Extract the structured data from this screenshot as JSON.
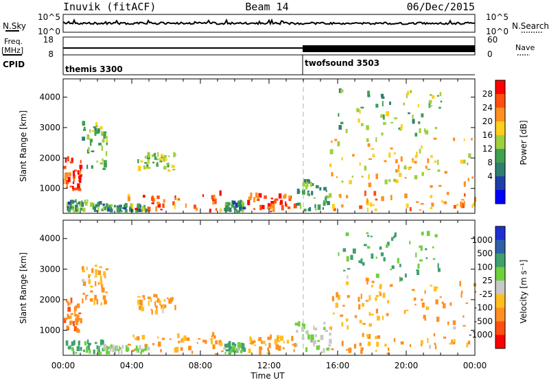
{
  "header": {
    "station": "Inuvik (fitACF)",
    "beam": "Beam 14",
    "date": "06/Dec/2015"
  },
  "strips": {
    "nsky_label": "N.Sky",
    "nsky_ticks": [
      "10^5",
      "10^0"
    ],
    "nsearch_label": "N.Search",
    "nsearch_ticks": [
      "10^5",
      "10^0"
    ],
    "freq_label_1": "Freq.",
    "freq_label_2": "[MHz]",
    "freq_ticks": [
      "18",
      "8"
    ],
    "nave_label": "Nave",
    "nave_ticks": [
      "60",
      "0"
    ],
    "cpid_label": "CPID",
    "cpid_segments": [
      {
        "name": "themis 3300",
        "start_hour": 0
      },
      {
        "name": "twofsound 3503",
        "start_hour": 14
      }
    ]
  },
  "panels": [
    {
      "ylabel": "Slant Range [km]",
      "yticks": [
        "4000",
        "3000",
        "2000",
        "1000"
      ],
      "colorbar_label": "Power [dB]",
      "colorbar_ticks": [
        "28",
        "24",
        "20",
        "16",
        "12",
        "8",
        "4"
      ]
    },
    {
      "ylabel": "Slant Range [km]",
      "yticks": [
        "4000",
        "3000",
        "2000",
        "1000"
      ],
      "colorbar_label": "Velocity [m s⁻¹]",
      "colorbar_ticks": [
        "1000",
        "500",
        "100",
        "25",
        "-25",
        "-100",
        "-500",
        "-1000"
      ]
    }
  ],
  "xaxis": {
    "label": "Time UT",
    "ticks": [
      "00:00",
      "04:00",
      "08:00",
      "12:00",
      "16:00",
      "20:00",
      "00:00"
    ]
  },
  "colors": {
    "power": [
      "#0000ff",
      "#1f3fa8",
      "#2f7f6f",
      "#3fa04f",
      "#9fcf3f",
      "#ffcf1f",
      "#ff8f1f",
      "#ff4f0f",
      "#ff0000"
    ],
    "velocity": [
      "#ff0000",
      "#ff4f10",
      "#ff8f20",
      "#ffbf20",
      "#c8c8c8",
      "#6fcf3f",
      "#3f9f6f",
      "#2f5fa8",
      "#1f2fcf"
    ]
  },
  "chart_data": {
    "type": "heatmap",
    "title": "Inuvik (fitACF)  Beam 14  06/Dec/2015",
    "xlabel": "Time UT",
    "x_range_hours": [
      0,
      24
    ],
    "ylabel": "Slant Range [km]",
    "ylim_km": [
      180,
      4600
    ],
    "cpid_change_hour": 14,
    "scatter_regions_hours_km": [
      {
        "t": [
          0.0,
          1.0
        ],
        "r": [
          900,
          1900
        ],
        "power_db": 28,
        "velocity": -300
      },
      {
        "t": [
          1.0,
          2.5
        ],
        "r": [
          1600,
          3100
        ],
        "power_db": 14,
        "velocity": -100
      },
      {
        "t": [
          0.1,
          2.3
        ],
        "r": [
          200,
          550
        ],
        "power_db": 10,
        "velocity": 100
      },
      {
        "t": [
          2.3,
          5.0
        ],
        "r": [
          200,
          400
        ],
        "power_db": 10,
        "velocity": 25
      },
      {
        "t": [
          4.3,
          6.5
        ],
        "r": [
          1500,
          2100
        ],
        "power_db": 16,
        "velocity": -100
      },
      {
        "t": [
          3.7,
          9.3
        ],
        "r": [
          200,
          800
        ],
        "power_db": 26,
        "velocity": -100
      },
      {
        "t": [
          9.3,
          10.5
        ],
        "r": [
          200,
          500
        ],
        "power_db": 10,
        "velocity": 100
      },
      {
        "t": [
          10.7,
          13.5
        ],
        "r": [
          200,
          700
        ],
        "power_db": 28,
        "velocity": -100
      },
      {
        "t": [
          13.5,
          15.5
        ],
        "r": [
          200,
          1200
        ],
        "power_db": 12,
        "velocity": 25
      },
      {
        "t": [
          15.5,
          24.0
        ],
        "r": [
          200,
          800
        ],
        "power_db": 24,
        "velocity": -100
      },
      {
        "t": [
          15.5,
          24.0
        ],
        "r": [
          1000,
          2600
        ],
        "power_db": 20,
        "velocity": -100
      },
      {
        "t": [
          16.0,
          22.0
        ],
        "r": [
          2600,
          4200
        ],
        "power_db": 14,
        "velocity": 100
      }
    ]
  }
}
